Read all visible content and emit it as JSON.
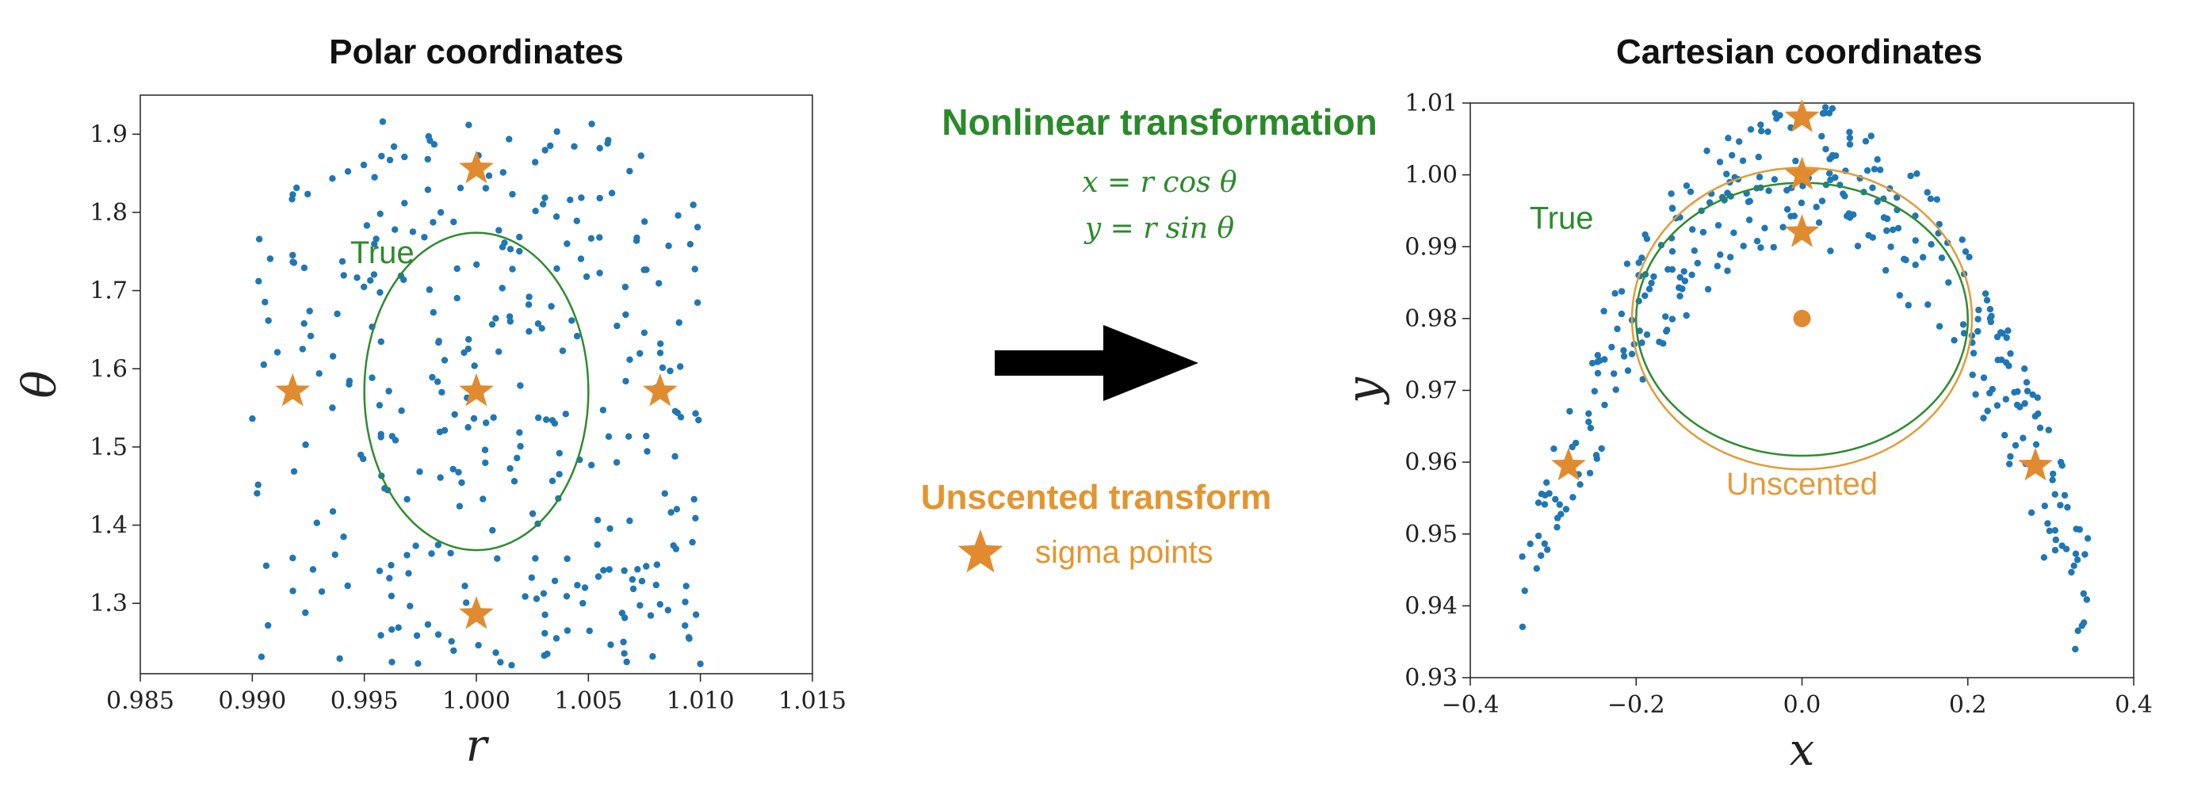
{
  "colors": {
    "point": "#1f77b4",
    "sigma": "#e08b2f",
    "true_ellipse": "#2e8b2e",
    "unscented_ellipse": "#e39b38",
    "title": "#111111",
    "axis": "#222222",
    "transform_text": "#2a8a2a",
    "unscented_text": "#e3952f",
    "arrow": "#000000"
  },
  "icons": {
    "arrow": "right-arrow-icon",
    "sigma": "star-icon"
  },
  "middle": {
    "nonlinear_title": "Nonlinear transformation",
    "eq1": "x = r cos θ",
    "eq2": "y = r sin θ",
    "unscented_title": "Unscented transform",
    "sigma_label": "sigma points"
  },
  "chart_data": [
    {
      "type": "scatter",
      "title": "Polar coordinates",
      "xlabel": "r",
      "ylabel": "θ",
      "xlim": [
        0.985,
        1.015
      ],
      "ylim": [
        1.21,
        1.95
      ],
      "xticks": [
        0.985,
        0.99,
        0.995,
        1.0,
        1.005,
        1.01,
        1.015
      ],
      "xtick_labels": [
        "0.985",
        "0.990",
        "0.995",
        "1.000",
        "1.005",
        "1.010",
        "1.015"
      ],
      "yticks": [
        1.2,
        1.3,
        1.4,
        1.5,
        1.6,
        1.7,
        1.8,
        1.9
      ],
      "ytick_labels": [
        "1.2",
        "1.3",
        "1.4",
        "1.5",
        "1.6",
        "1.7",
        "1.8",
        "1.9"
      ],
      "grid": false,
      "samples": {
        "distribution": "uniform",
        "x_range": [
          0.99,
          1.01
        ],
        "y_range": [
          1.22,
          1.92
        ],
        "count": 330
      },
      "sigma_points": [
        {
          "x": 1.0,
          "y": 1.571
        },
        {
          "x": 0.9918,
          "y": 1.571
        },
        {
          "x": 1.0082,
          "y": 1.571
        },
        {
          "x": 1.0,
          "y": 1.856
        },
        {
          "x": 1.0,
          "y": 1.286
        }
      ],
      "ellipses": [
        {
          "name": "True",
          "cx": 1.0,
          "cy": 1.571,
          "rx": 0.005,
          "ry": 0.203,
          "color_key": "true_ellipse"
        }
      ],
      "annotations": [
        {
          "text": "True",
          "x": 0.9958,
          "y": 1.735,
          "color_key": "true_ellipse"
        }
      ]
    },
    {
      "type": "scatter",
      "title": "Cartesian coordinates",
      "xlabel": "x",
      "ylabel": "y",
      "xlim": [
        -0.4,
        0.4
      ],
      "ylim": [
        0.93,
        1.01
      ],
      "xticks": [
        -0.4,
        -0.2,
        0.0,
        0.2,
        0.4
      ],
      "xtick_labels": [
        "−0.4",
        "−0.2",
        "0.0",
        "0.2",
        "0.4"
      ],
      "yticks": [
        0.93,
        0.94,
        0.95,
        0.96,
        0.97,
        0.98,
        0.99,
        1.0,
        1.01
      ],
      "ytick_labels": [
        "0.93",
        "0.94",
        "0.95",
        "0.96",
        "0.97",
        "0.98",
        "0.99",
        "1.00",
        "1.01"
      ],
      "grid": false,
      "samples": {
        "derived_from_polar": true,
        "count": 330
      },
      "sigma_points": [
        {
          "x": 0.0,
          "y": 1.008
        },
        {
          "x": 0.0,
          "y": 1.0
        },
        {
          "x": 0.0,
          "y": 0.992
        },
        {
          "x": -0.2815,
          "y": 0.9595
        },
        {
          "x": 0.2815,
          "y": 0.9595
        }
      ],
      "mean_point": {
        "x": 0.0,
        "y": 0.98
      },
      "ellipses": [
        {
          "name": "Unscented",
          "cx": 0.0,
          "cy": 0.98,
          "rx": 0.205,
          "ry": 0.021,
          "color_key": "unscented_ellipse"
        },
        {
          "name": "True",
          "cx": 0.0,
          "cy": 0.9799,
          "rx": 0.2,
          "ry": 0.019,
          "color_key": "true_ellipse"
        }
      ],
      "annotations": [
        {
          "text": "True",
          "x": -0.29,
          "y": 0.9925,
          "color_key": "true_ellipse"
        },
        {
          "text": "Unscented",
          "x": 0.0,
          "y": 0.9555,
          "color_key": "unscented_ellipse"
        }
      ]
    }
  ]
}
